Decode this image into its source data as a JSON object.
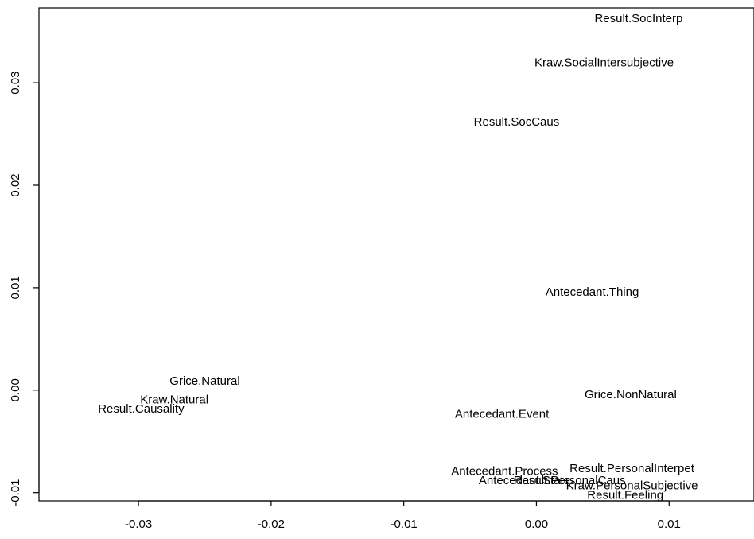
{
  "chart_data": {
    "type": "scatter",
    "title": "",
    "xlabel": "",
    "ylabel": "",
    "xlim": [
      -0.0375,
      0.0164
    ],
    "ylim": [
      -0.0108,
      0.0373
    ],
    "x_ticks": [
      -0.03,
      -0.02,
      -0.01,
      0.0,
      0.01
    ],
    "x_tick_labels": [
      "-0.03",
      "-0.02",
      "-0.01",
      "0.00",
      "0.01"
    ],
    "y_ticks": [
      -0.01,
      0.0,
      0.01,
      0.02,
      0.03
    ],
    "y_tick_labels": [
      "-0.01",
      "0.00",
      "0.01",
      "0.02",
      "0.03"
    ],
    "grid": false,
    "legend": "none",
    "points": [
      {
        "label": "Result.SocInterp",
        "x": 0.0077,
        "y": 0.0363
      },
      {
        "label": "Kraw.SocialIntersubjective",
        "x": 0.0051,
        "y": 0.032
      },
      {
        "label": "Result.SocCaus",
        "x": -0.0015,
        "y": 0.0262
      },
      {
        "label": "Antecedant.Thing",
        "x": 0.0042,
        "y": 0.0096
      },
      {
        "label": "Grice.Natural",
        "x": -0.025,
        "y": 0.0009
      },
      {
        "label": "Kraw.Natural",
        "x": -0.0273,
        "y": -0.0009
      },
      {
        "label": "Result.Causality",
        "x": -0.0298,
        "y": -0.0018
      },
      {
        "label": "Grice.NonNatural",
        "x": 0.0071,
        "y": -0.0004
      },
      {
        "label": "Antecedant.Event",
        "x": -0.0026,
        "y": -0.0023
      },
      {
        "label": "Antecedant.Process",
        "x": -0.0024,
        "y": -0.0079
      },
      {
        "label": "Result.PersonalInterpet",
        "x": 0.0072,
        "y": -0.0076
      },
      {
        "label": "Antecedant.State",
        "x": -0.0009,
        "y": -0.0088
      },
      {
        "label": "Result.PersonalCaus",
        "x": 0.0025,
        "y": -0.0088
      },
      {
        "label": "Kraw.PersonalSubjective",
        "x": 0.0072,
        "y": -0.0093
      },
      {
        "label": "Result.Feeling",
        "x": 0.0067,
        "y": -0.0102
      }
    ]
  }
}
